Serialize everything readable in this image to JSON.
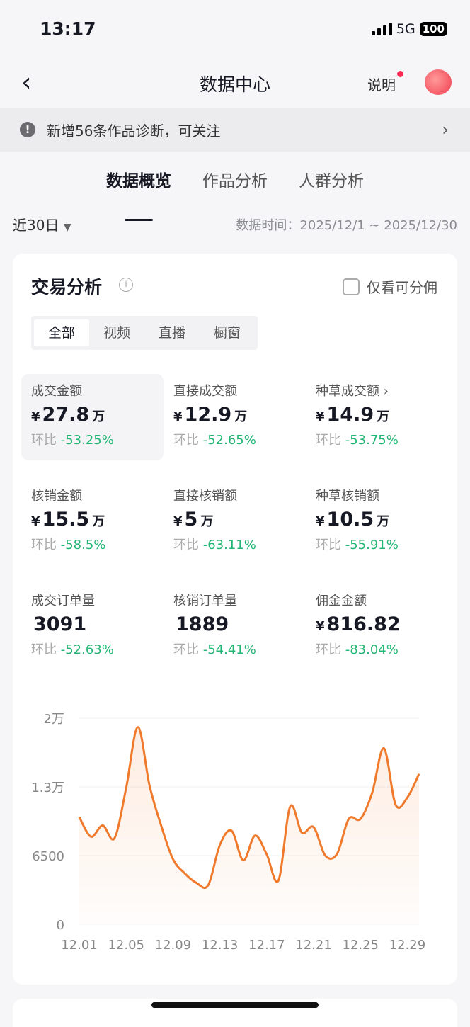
{
  "status": {
    "time": "13:17",
    "network": "5G",
    "battery": "100"
  },
  "nav": {
    "title": "数据中心",
    "help": "说明"
  },
  "notice": {
    "text": "新增56条作品诊断，可关注"
  },
  "tabs": [
    {
      "label": "数据概览",
      "active": true
    },
    {
      "label": "作品分析"
    },
    {
      "label": "人群分析"
    }
  ],
  "range": {
    "selected": "近30日",
    "data_time": "数据时间：2025/12/1 ~ 2025/12/30"
  },
  "card": {
    "title": "交易分析",
    "checkbox": "仅看可分佣",
    "segments": [
      "全部",
      "视频",
      "直播",
      "橱窗"
    ],
    "metrics": [
      {
        "label": "成交金额",
        "currency": "¥",
        "value": "27.8",
        "unit": "万",
        "cmp": "环比",
        "change": "-53.25%",
        "selected": true
      },
      {
        "label": "直接成交额",
        "currency": "¥",
        "value": "12.9",
        "unit": "万",
        "cmp": "环比",
        "change": "-52.65%"
      },
      {
        "label": "种草成交额 ›",
        "currency": "¥",
        "value": "14.9",
        "unit": "万",
        "cmp": "环比",
        "change": "-53.75%"
      },
      {
        "label": "核销金额",
        "currency": "¥",
        "value": "15.5",
        "unit": "万",
        "cmp": "环比",
        "change": "-58.5%"
      },
      {
        "label": "直接核销额",
        "currency": "¥",
        "value": "5",
        "unit": "万",
        "cmp": "环比",
        "change": "-63.11%"
      },
      {
        "label": "种草核销额",
        "currency": "¥",
        "value": "10.5",
        "unit": "万",
        "cmp": "环比",
        "change": "-55.91%"
      },
      {
        "label": "成交订单量",
        "currency": "",
        "value": "3091",
        "unit": "",
        "cmp": "环比",
        "change": "-52.63%"
      },
      {
        "label": "核销订单量",
        "currency": "",
        "value": "1889",
        "unit": "",
        "cmp": "环比",
        "change": "-54.41%"
      },
      {
        "label": "佣金金额",
        "currency": "¥",
        "value": "816.82",
        "unit": "",
        "cmp": "环比",
        "change": "-83.04%"
      }
    ]
  },
  "chart_data": {
    "type": "area",
    "line_color": "#f07a2c",
    "ylim": [
      0,
      19500
    ],
    "yticks": [
      {
        "v": 0,
        "label": "0"
      },
      {
        "v": 6500,
        "label": "6500"
      },
      {
        "v": 13000,
        "label": "1.3万"
      },
      {
        "v": 19500,
        "label": "2万"
      }
    ],
    "xticklabels": [
      "12.01",
      "12.05",
      "12.09",
      "12.13",
      "12.17",
      "12.21",
      "12.25",
      "12.29"
    ],
    "x": [
      "12.01",
      "12.02",
      "12.03",
      "12.04",
      "12.05",
      "12.06",
      "12.07",
      "12.08",
      "12.09",
      "12.10",
      "12.11",
      "12.12",
      "12.13",
      "12.14",
      "12.15",
      "12.16",
      "12.17",
      "12.18",
      "12.19",
      "12.20",
      "12.21",
      "12.22",
      "12.23",
      "12.24",
      "12.25",
      "12.26",
      "12.27",
      "12.28",
      "12.29",
      "12.30"
    ],
    "values": [
      10150,
      8290,
      9350,
      8140,
      12890,
      18650,
      13110,
      9300,
      6160,
      4820,
      3920,
      3700,
      7510,
      8850,
      6050,
      8400,
      6610,
      4150,
      11140,
      8670,
      9190,
      6500,
      6660,
      9970,
      9970,
      12440,
      16650,
      11320,
      11990,
      14230
    ]
  }
}
